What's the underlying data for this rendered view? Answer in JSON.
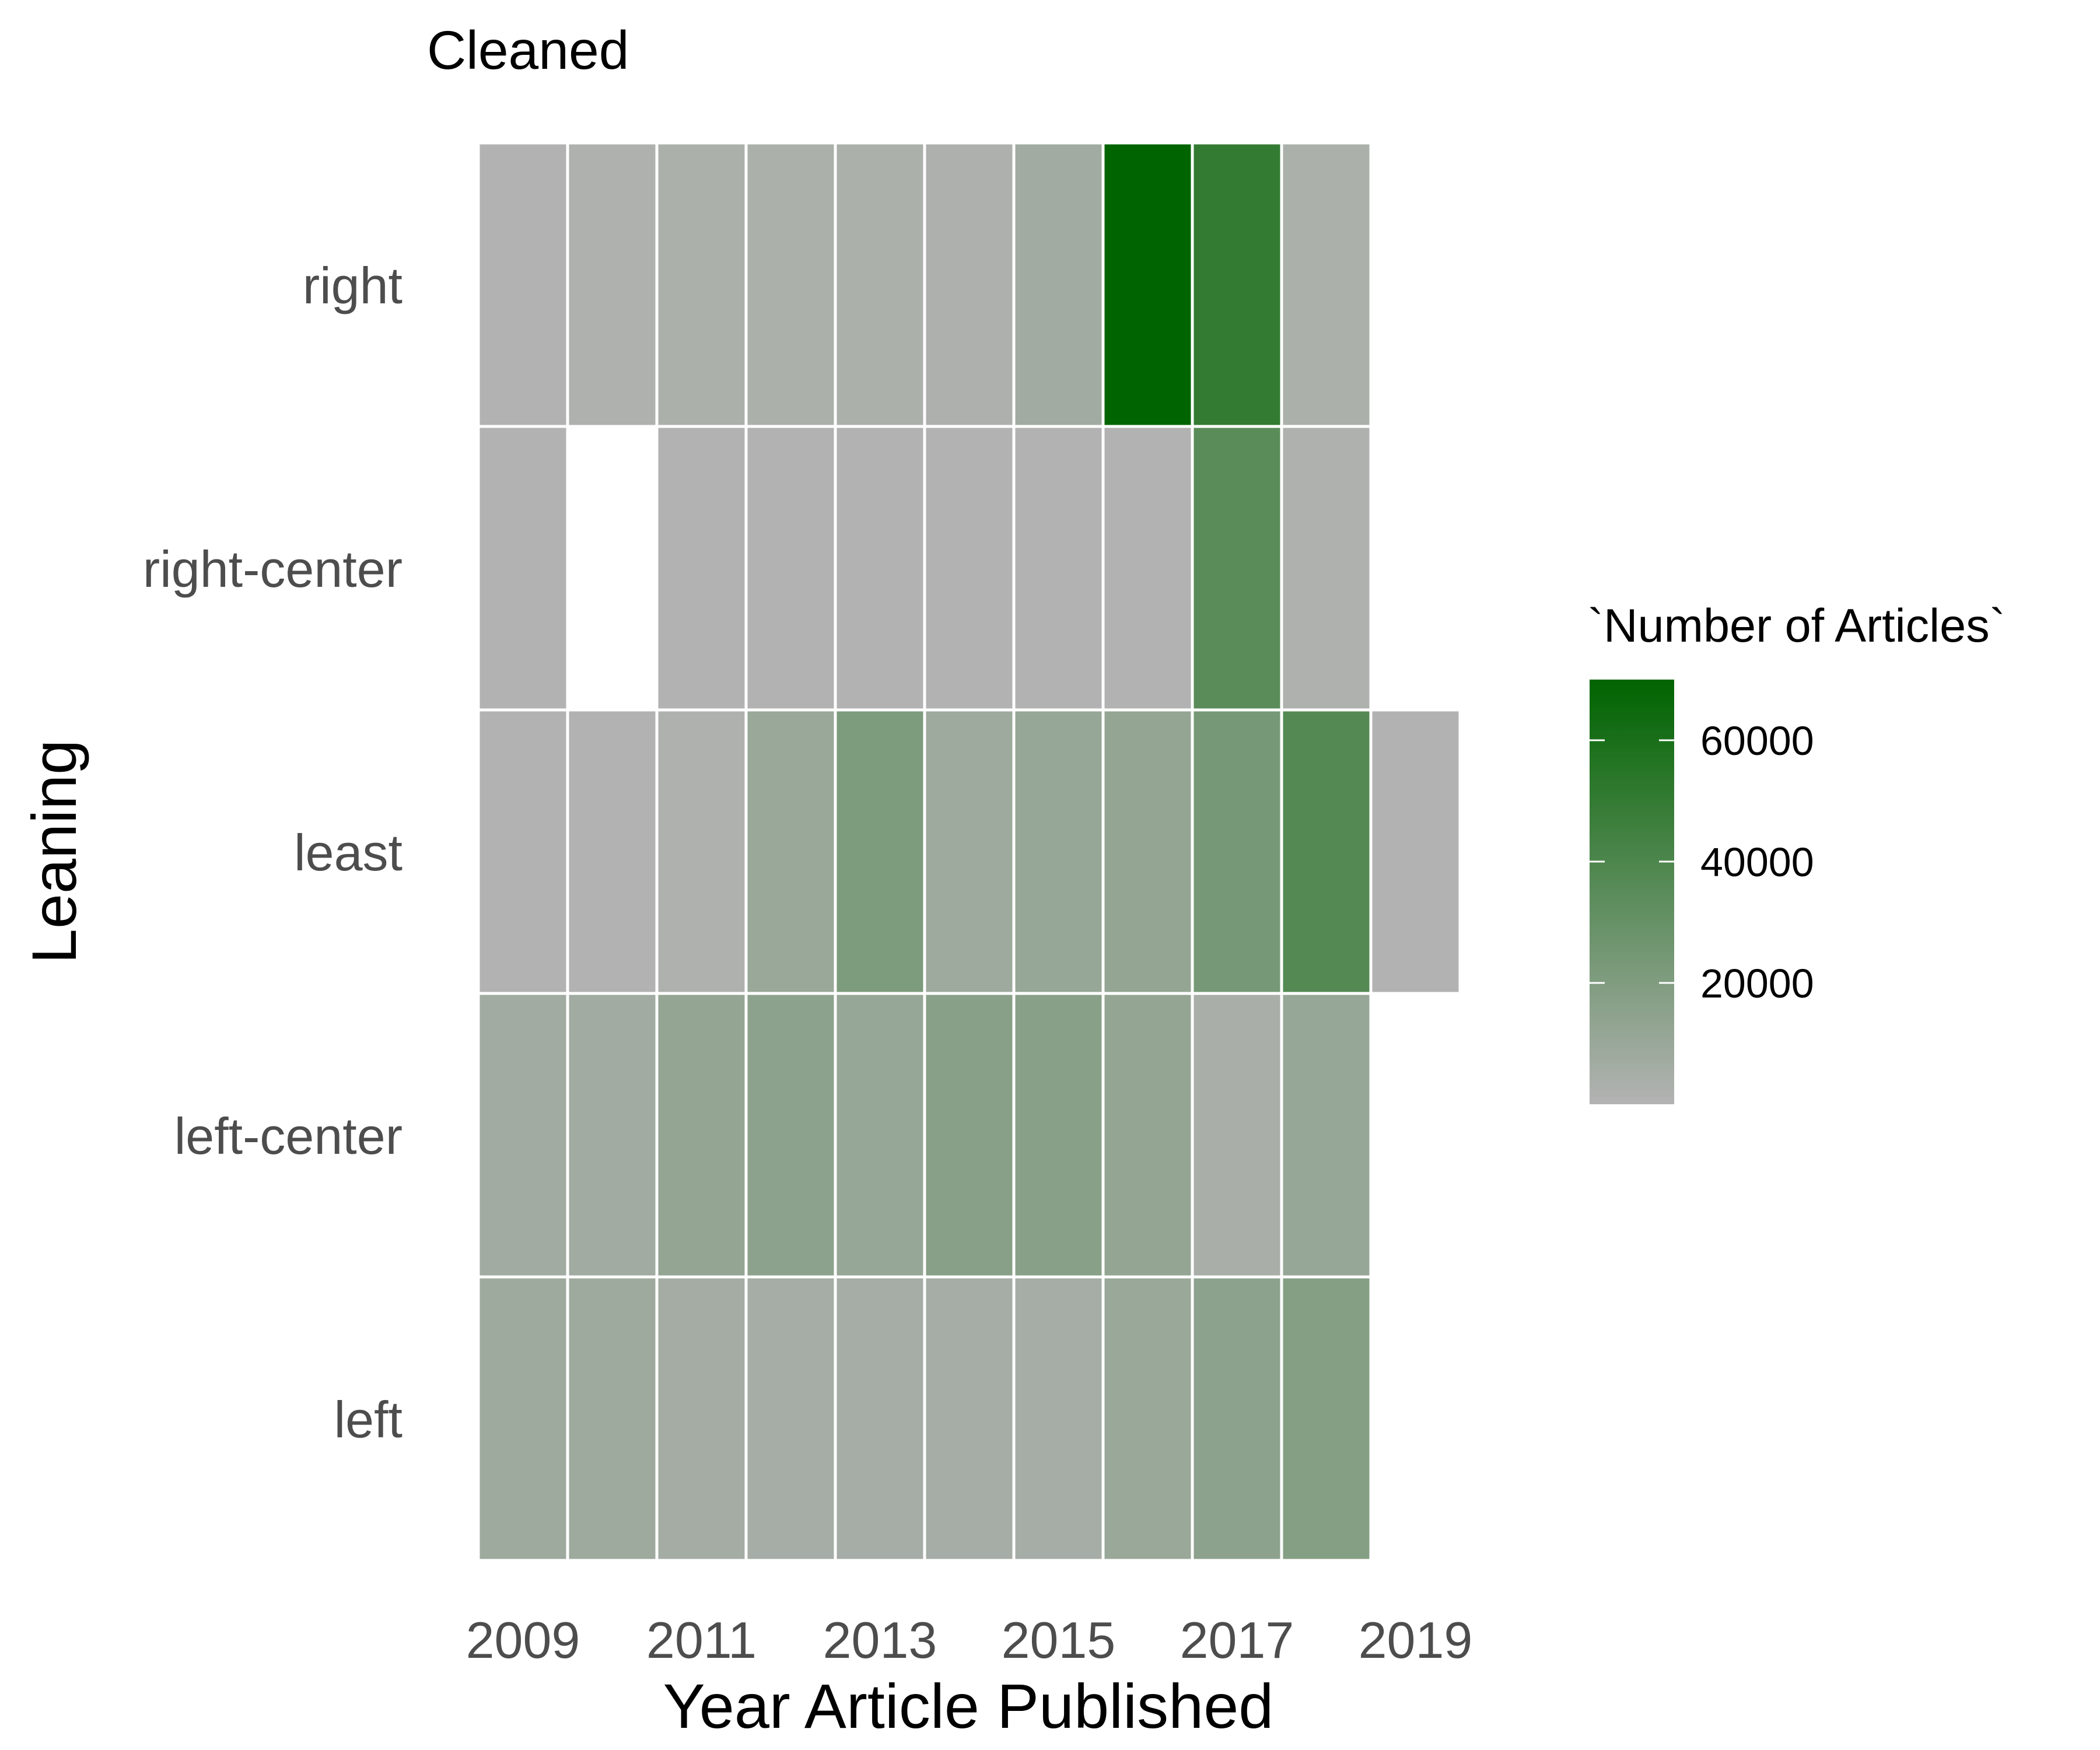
{
  "chart_data": {
    "type": "heatmap",
    "title": "Cleaned",
    "xlabel": "Year Article Published",
    "ylabel": "Leaning",
    "x": [
      2009,
      2010,
      2011,
      2012,
      2013,
      2014,
      2015,
      2016,
      2017,
      2018,
      2019
    ],
    "x_tick_labels": [
      "2009",
      "2011",
      "2013",
      "2015",
      "2017",
      "2019"
    ],
    "y_categories": [
      "left",
      "left-center",
      "least",
      "right-center",
      "right"
    ],
    "cells": [
      {
        "leaning": "right",
        "values": [
          500,
          1500,
          3000,
          3000,
          3000,
          2500,
          7000,
          70000,
          50000,
          3000,
          null
        ]
      },
      {
        "leaning": "right-center",
        "values": [
          500,
          null,
          500,
          500,
          500,
          500,
          500,
          500,
          35000,
          1500,
          null
        ]
      },
      {
        "leaning": "least",
        "values": [
          500,
          500,
          1500,
          10000,
          21000,
          8000,
          11000,
          12000,
          24000,
          37000,
          500
        ]
      },
      {
        "leaning": "left-center",
        "values": [
          7000,
          7000,
          12000,
          15000,
          11000,
          17000,
          17000,
          12000,
          4000,
          11000,
          null
        ]
      },
      {
        "leaning": "left",
        "values": [
          8000,
          8000,
          6000,
          5000,
          5000,
          5000,
          5000,
          10000,
          15000,
          18000,
          null
        ]
      }
    ],
    "legend": {
      "title": "`Number of Articles`",
      "ticks": [
        20000,
        40000,
        60000
      ],
      "tick_labels": [
        "20000",
        "40000",
        "60000"
      ],
      "range": [
        0,
        70000
      ],
      "color_low": "#b3b3b3",
      "color_high": "#006400",
      "position": "right"
    },
    "grid": false
  }
}
